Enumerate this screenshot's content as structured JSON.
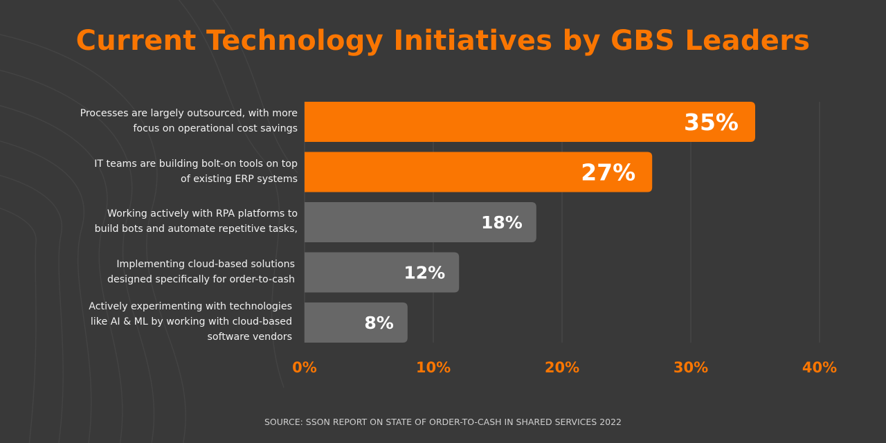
{
  "colors": {
    "background": "#393939",
    "accent": "#fa7602",
    "bar_gray": "#676767",
    "gridline": "#4d4d4d",
    "label_text": "#f2f2f2",
    "value_text": "#ffffff"
  },
  "chart_data": {
    "type": "bar",
    "orientation": "horizontal",
    "title": "Current Technology Initiatives by GBS Leaders",
    "categories": [
      "Processes are largely outsourced, with more\nfocus on operational cost savings",
      "IT teams are building bolt-on tools on top\nof existing ERP systems",
      "Working actively with RPA platforms to\nbuild bots and  automate repetitive tasks,",
      "Implementing cloud-based solutions\ndesigned specifically for order-to-cash ",
      "Actively experimenting with technologies\nlike AI & ML by working with cloud-based\nsoftware vendors"
    ],
    "values": [
      35,
      27,
      18,
      12,
      8
    ],
    "value_labels": [
      "35%",
      "27%",
      "18%",
      "12%",
      "8%"
    ],
    "highlighted": [
      true,
      true,
      false,
      false,
      false
    ],
    "xlim": [
      0,
      40
    ],
    "xticks": [
      0,
      10,
      20,
      30,
      40
    ],
    "xtick_labels": [
      "0%",
      "10%",
      "20%",
      "30%",
      "40%"
    ],
    "xlabel": "",
    "ylabel": "",
    "grid": true,
    "legend": "none"
  },
  "footer": {
    "source": "SOURCE: SSON REPORT ON STATE OF ORDER-TO-CASH IN SHARED SERVICES 2022"
  }
}
